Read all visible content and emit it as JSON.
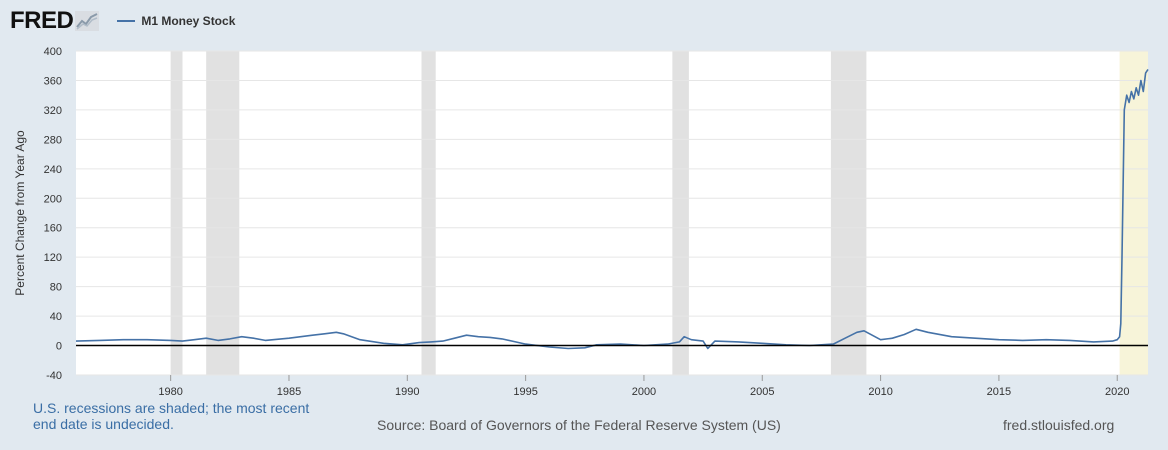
{
  "header": {
    "logo_text": "FRED",
    "legend_label": "M1 Money Stock"
  },
  "colors": {
    "page_background": "#e1e9f0",
    "plot_background": "#ffffff",
    "series_line": "#4572a7",
    "recession_shade": "#e1e1e1",
    "undecided_shade": "#f7f4d9",
    "zero_line": "#000000"
  },
  "chart_data": {
    "type": "line",
    "title": "",
    "ylabel": "Percent Change from Year Ago",
    "xlabel": "",
    "xlim": [
      1976.0,
      2021.3
    ],
    "ylim": [
      -40,
      400
    ],
    "x_ticks": [
      1980,
      1985,
      1990,
      1995,
      2000,
      2005,
      2010,
      2015,
      2020
    ],
    "x_tick_labels": [
      "1980",
      "1985",
      "1990",
      "1995",
      "2000",
      "2005",
      "2010",
      "2015",
      "2020"
    ],
    "y_ticks": [
      -40,
      0,
      40,
      80,
      120,
      160,
      200,
      240,
      280,
      320,
      360,
      400
    ],
    "y_tick_labels": [
      "-40",
      "0",
      "40",
      "80",
      "120",
      "160",
      "200",
      "240",
      "280",
      "320",
      "360",
      "400"
    ],
    "grid": "horizontal",
    "legend": "top-left",
    "recessions": [
      [
        1980.0,
        1980.5
      ],
      [
        1981.5,
        1982.9
      ],
      [
        1990.6,
        1991.2
      ],
      [
        2001.2,
        2001.9
      ],
      [
        2007.9,
        2009.4
      ]
    ],
    "undecided_recession": [
      2020.1,
      2021.3
    ],
    "series": [
      {
        "name": "M1 Money Stock",
        "x": [
          1976.0,
          1977.0,
          1978.0,
          1979.0,
          1980.0,
          1980.5,
          1981.0,
          1981.5,
          1982.0,
          1982.5,
          1983.0,
          1983.5,
          1984.0,
          1985.0,
          1986.0,
          1986.5,
          1987.0,
          1987.3,
          1988.0,
          1989.0,
          1989.8,
          1990.5,
          1991.0,
          1991.5,
          1992.0,
          1992.5,
          1993.0,
          1993.5,
          1994.0,
          1995.0,
          1996.0,
          1996.8,
          1997.5,
          1998.0,
          1999.0,
          2000.0,
          2001.0,
          2001.5,
          2001.7,
          2002.0,
          2002.5,
          2002.7,
          2003.0,
          2004.0,
          2005.0,
          2006.0,
          2007.0,
          2008.0,
          2008.5,
          2009.0,
          2009.3,
          2010.0,
          2010.5,
          2011.0,
          2011.5,
          2012.0,
          2013.0,
          2014.0,
          2015.0,
          2016.0,
          2017.0,
          2018.0,
          2019.0,
          2019.8,
          2020.0,
          2020.1,
          2020.15,
          2020.2,
          2020.3,
          2020.4,
          2020.5,
          2020.6,
          2020.7,
          2020.8,
          2020.9,
          2021.0,
          2021.1,
          2021.2,
          2021.3
        ],
        "values": [
          6,
          7,
          8,
          8,
          7,
          6,
          8,
          10,
          7,
          9,
          12,
          10,
          7,
          10,
          14,
          16,
          18,
          16,
          8,
          3,
          1,
          4,
          5,
          6,
          10,
          14,
          12,
          11,
          9,
          2,
          -2,
          -4,
          -3,
          1,
          2,
          0,
          2,
          5,
          12,
          8,
          6,
          -4,
          6,
          5,
          3,
          1,
          0,
          2,
          10,
          18,
          20,
          8,
          10,
          15,
          22,
          18,
          12,
          10,
          8,
          7,
          8,
          7,
          5,
          6,
          8,
          12,
          30,
          120,
          320,
          340,
          330,
          345,
          335,
          350,
          340,
          360,
          345,
          370,
          375
        ]
      }
    ]
  },
  "footer": {
    "note": "U.S. recessions are shaded; the most recent end date is undecided.",
    "source": "Source: Board of Governors of the Federal Reserve System (US)",
    "url": "fred.stlouisfed.org"
  }
}
